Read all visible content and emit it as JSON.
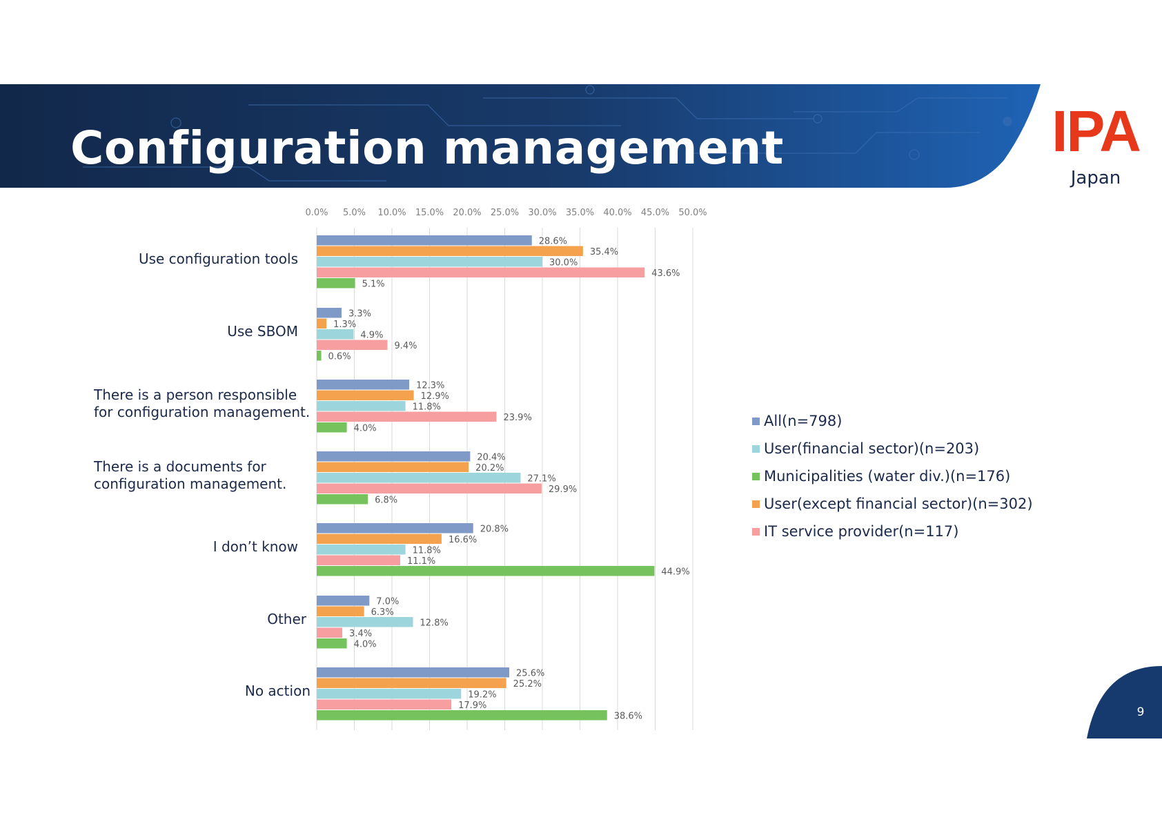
{
  "slide": {
    "title": "Configuration management",
    "logo": "IPA",
    "logo_sub": "Japan",
    "page_number": "9"
  },
  "colors": {
    "header_dark": "#12284a",
    "header_blue": "#1e5faf",
    "logo_red": "#e8381b",
    "grid": "#d9d9d9",
    "axis_text": "#7f7f7f",
    "label_text": "#1b2a4a"
  },
  "chart_data": {
    "type": "bar",
    "orientation": "horizontal",
    "title": "",
    "xlabel": "",
    "ylabel": "",
    "xlim": [
      0,
      50
    ],
    "grid": true,
    "legend_position": "right",
    "ticks": [
      "0.0%",
      "5.0%",
      "10.0%",
      "15.0%",
      "20.0%",
      "25.0%",
      "30.0%",
      "35.0%",
      "40.0%",
      "45.0%",
      "50.0%"
    ],
    "categories": [
      "Use configuration tools",
      "Use SBOM",
      "There is a person responsible for configuration management.",
      "There is a documents for configuration management.",
      "I don’t know",
      "Other",
      "No action"
    ],
    "category_lines": [
      [
        "Use configuration tools"
      ],
      [
        "Use SBOM"
      ],
      [
        "There is a person responsible",
        "for configuration management."
      ],
      [
        "There is a documents for",
        "configuration management."
      ],
      [
        "I don’t know"
      ],
      [
        "Other"
      ],
      [
        "No action"
      ]
    ],
    "series": [
      {
        "name": "All(n=798)",
        "color": "#7f9ac6",
        "values": [
          28.6,
          3.3,
          12.3,
          20.4,
          20.8,
          7.0,
          25.6
        ],
        "labels": [
          "28.6%",
          "3.3%",
          "12.3%",
          "20.4%",
          "20.8%",
          "7.0%",
          "25.6%"
        ]
      },
      {
        "name": "User(except financial sector)(n=302)",
        "color": "#f4a24e",
        "values": [
          35.4,
          1.3,
          12.9,
          20.2,
          16.6,
          6.3,
          25.2
        ],
        "labels": [
          "35.4%",
          "1.3%",
          "12.9%",
          "20.2%",
          "16.6%",
          "6.3%",
          "25.2%"
        ]
      },
      {
        "name": "User(financial sector)(n=203)",
        "color": "#9dd5dd",
        "values": [
          30.0,
          4.9,
          11.8,
          27.1,
          11.8,
          12.8,
          19.2
        ],
        "labels": [
          "30.0%",
          "4.9%",
          "11.8%",
          "27.1%",
          "11.8%",
          "12.8%",
          "19.2%"
        ]
      },
      {
        "name": "IT service provider(n=117)",
        "color": "#f79ea1",
        "values": [
          43.6,
          9.4,
          23.9,
          29.9,
          11.1,
          3.4,
          17.9
        ],
        "labels": [
          "43.6%",
          "9.4%",
          "23.9%",
          "29.9%",
          "11.1%",
          "3.4%",
          "17.9%"
        ]
      },
      {
        "name": "Municipalities (water div.)(n=176)",
        "color": "#76c25d",
        "values": [
          5.1,
          0.6,
          4.0,
          6.8,
          44.9,
          4.0,
          38.6
        ],
        "labels": [
          "5.1%",
          "0.6%",
          "4.0%",
          "6.8%",
          "44.9%",
          "4.0%",
          "38.6%"
        ]
      }
    ],
    "legend_order": [
      0,
      2,
      4,
      1,
      3
    ]
  }
}
